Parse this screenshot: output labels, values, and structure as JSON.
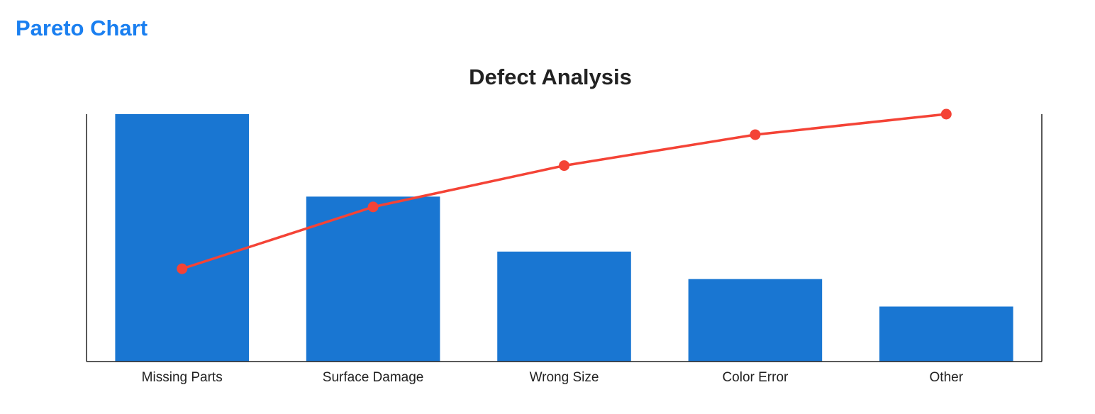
{
  "page": {
    "heading": "Pareto Chart"
  },
  "chart_data": {
    "type": "pareto",
    "title": "Defect Analysis",
    "categories": [
      "Missing Parts",
      "Surface Damage",
      "Wrong Size",
      "Color Error",
      "Other"
    ],
    "series": [
      {
        "color": "#1976d2",
        "values": [
          45,
          30,
          20,
          15,
          10
        ]
      },
      {
        "color": "#f44336",
        "axis": "y2",
        "values": [
          37.5,
          62.5,
          79.2,
          91.7,
          100
        ]
      }
    ],
    "ylim": [
      0,
      45
    ],
    "y2lim": [
      0,
      100
    ]
  }
}
